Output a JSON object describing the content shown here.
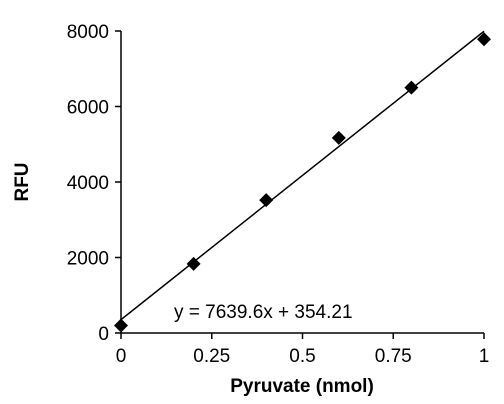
{
  "chart_data": {
    "type": "scatter",
    "title": "",
    "xlabel": "Pyruvate (nmol)",
    "ylabel": "RFU",
    "x": [
      0,
      0.2,
      0.4,
      0.6,
      0.8,
      1.0
    ],
    "y": [
      200,
      1830,
      3520,
      5170,
      6500,
      7780
    ],
    "xlim": [
      0,
      1
    ],
    "ylim": [
      0,
      8000
    ],
    "xticks": [
      0,
      0.25,
      0.5,
      0.75,
      1
    ],
    "xtick_labels": [
      "0",
      "0.25",
      "0.5",
      "0.75",
      "1"
    ],
    "yticks": [
      0,
      2000,
      4000,
      6000,
      8000
    ],
    "ytick_labels": [
      "0",
      "2000",
      "4000",
      "6000",
      "8000"
    ],
    "trendline": {
      "slope": 7639.6,
      "intercept": 354.21,
      "equation": "y = 7639.6x + 354.21"
    },
    "marker": "diamond",
    "marker_color": "#000000",
    "line_color": "#000000",
    "grid": false,
    "legend": "none"
  }
}
